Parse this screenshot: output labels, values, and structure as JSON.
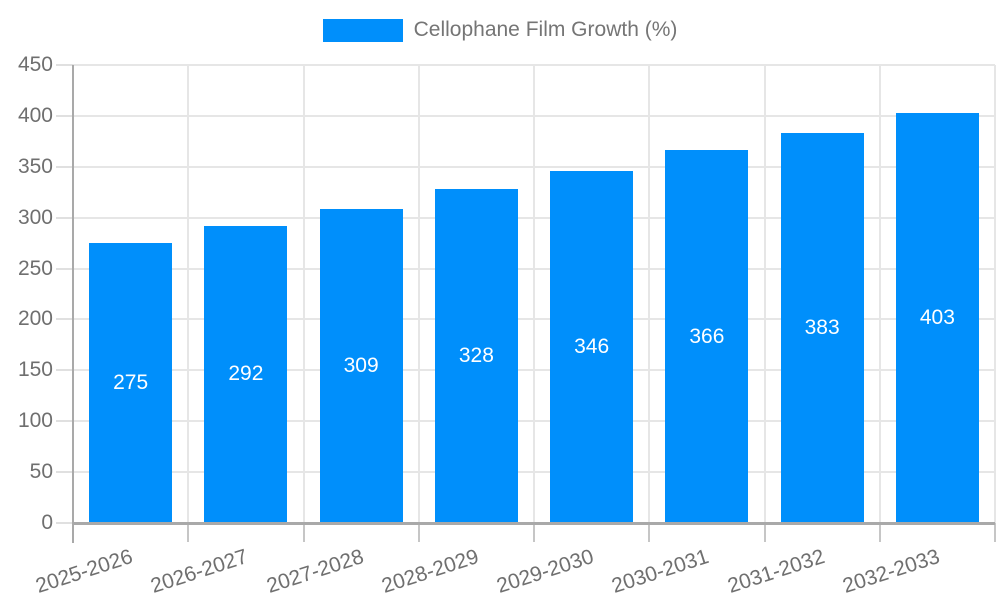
{
  "chart_data": {
    "type": "bar",
    "title": "",
    "xlabel": "",
    "ylabel": "",
    "legend": {
      "position": "top",
      "label": "Cellophane Film Growth (%)"
    },
    "categories": [
      "2025-2026",
      "2026-2027",
      "2027-2028",
      "2028-2029",
      "2029-2030",
      "2030-2031",
      "2031-2032",
      "2032-2033"
    ],
    "values": [
      275,
      292,
      309,
      328,
      346,
      366,
      383,
      403
    ],
    "value_labels": [
      "275",
      "292",
      "309",
      "328",
      "346",
      "366",
      "383",
      "403"
    ],
    "ylim": [
      0,
      450
    ],
    "ytick_labels": [
      "0",
      "50",
      "100",
      "150",
      "200",
      "250",
      "300",
      "350",
      "400",
      "450"
    ],
    "grid": "on",
    "colors": {
      "bar": "#008FFB",
      "gridline": "#e6e6e6",
      "axis_line": "#a9a9a9",
      "tick_label": "#6f6f6f",
      "legend_text": "#757575",
      "value_label": "#ffffff"
    }
  }
}
